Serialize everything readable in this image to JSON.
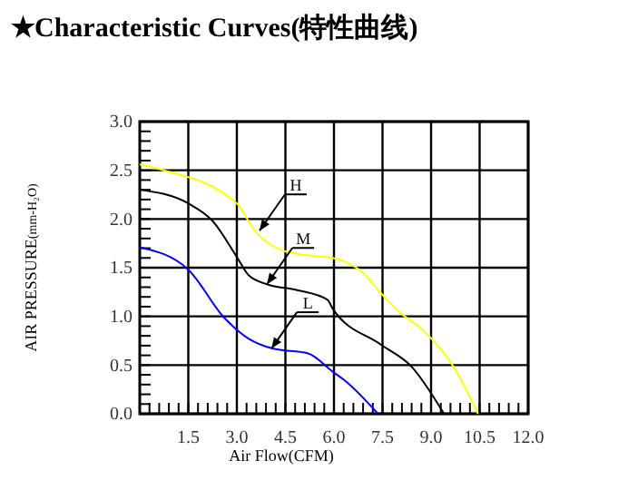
{
  "chart_data": {
    "type": "line",
    "title": "★Characteristic Curves(特性曲线)",
    "xlabel": "Air Flow(CFM)",
    "ylabel": "AIR PRESSURE(mm-H₂O)",
    "series": [
      {
        "color": "#ffff00",
        "x": [
          0,
          0.75,
          3.0,
          3.55,
          4.48,
          5.4,
          5.96,
          6.89,
          7.45,
          8.0,
          8.75,
          9.68,
          10.45
        ],
        "values": [
          2.56,
          2.5,
          2.16,
          1.88,
          1.67,
          1.62,
          1.6,
          1.45,
          1.24,
          1.05,
          0.86,
          0.49,
          0
        ]
      },
      {
        "color": "#000000",
        "x": [
          0,
          1.5,
          2.25,
          3.0,
          3.37,
          3.93,
          4.86,
          5.8,
          5.96,
          7.45,
          8.38,
          9.4
        ],
        "values": [
          2.3,
          2.16,
          1.98,
          1.61,
          1.42,
          1.33,
          1.27,
          1.17,
          1.08,
          0.71,
          0.49,
          0
        ]
      },
      {
        "color": "#0000ff",
        "x": [
          0,
          1.5,
          2.6,
          3.37,
          4.1,
          5.2,
          5.97,
          6.34,
          7.36
        ],
        "values": [
          1.71,
          1.48,
          0.99,
          0.77,
          0.67,
          0.62,
          0.43,
          0.34,
          0
        ]
      }
    ],
    "annotations": [
      {
        "text": "H",
        "x": 3.7,
        "y": 1.88
      },
      {
        "text": "M",
        "x": 3.93,
        "y": 1.33
      },
      {
        "text": "L",
        "x": 4.07,
        "y": 0.67
      }
    ],
    "xlim": [
      0,
      12
    ],
    "xticks": [
      {
        "value": 0.3,
        "label": null
      },
      {
        "value": 0.6,
        "label": null
      },
      {
        "value": 0.9,
        "label": null
      },
      {
        "value": 1.2,
        "label": null
      },
      {
        "value": 1.5,
        "label": "1.5"
      },
      {
        "value": 1.8,
        "label": null
      },
      {
        "value": 2.1,
        "label": null
      },
      {
        "value": 2.4,
        "label": null
      },
      {
        "value": 2.7,
        "label": null
      },
      {
        "value": 3,
        "label": "3.0"
      },
      {
        "value": 3.3,
        "label": null
      },
      {
        "value": 3.6,
        "label": null
      },
      {
        "value": 3.9,
        "label": null
      },
      {
        "value": 4.2,
        "label": null
      },
      {
        "value": 4.5,
        "label": "4.5"
      },
      {
        "value": 4.8,
        "label": null
      },
      {
        "value": 5.1,
        "label": null
      },
      {
        "value": 5.4,
        "label": null
      },
      {
        "value": 5.7,
        "label": null
      },
      {
        "value": 6,
        "label": "6.0"
      },
      {
        "value": 6.3,
        "label": null
      },
      {
        "value": 6.6,
        "label": null
      },
      {
        "value": 6.9,
        "label": null
      },
      {
        "value": 7.2,
        "label": null
      },
      {
        "value": 7.5,
        "label": "7.5"
      },
      {
        "value": 7.8,
        "label": null
      },
      {
        "value": 8.1,
        "label": null
      },
      {
        "value": 8.4,
        "label": null
      },
      {
        "value": 8.7,
        "label": null
      },
      {
        "value": 9,
        "label": "9.0"
      },
      {
        "value": 9.3,
        "label": null
      },
      {
        "value": 9.6,
        "label": null
      },
      {
        "value": 9.9,
        "label": null
      },
      {
        "value": 10.2,
        "label": null
      },
      {
        "value": 10.5,
        "label": "10.5"
      },
      {
        "value": 10.8,
        "label": null
      },
      {
        "value": 11.1,
        "label": null
      },
      {
        "value": 11.4,
        "label": null
      },
      {
        "value": 11.7,
        "label": null
      },
      {
        "value": 12,
        "label": "12.0"
      }
    ],
    "ylim": [
      0,
      3
    ],
    "yticks": [
      {
        "value": 0,
        "label": "0.0"
      },
      {
        "value": 0.1,
        "label": null
      },
      {
        "value": 0.2,
        "label": null
      },
      {
        "value": 0.3,
        "label": null
      },
      {
        "value": 0.4,
        "label": null
      },
      {
        "value": 0.5,
        "label": "0.5"
      },
      {
        "value": 0.6,
        "label": null
      },
      {
        "value": 0.7,
        "label": null
      },
      {
        "value": 0.8,
        "label": null
      },
      {
        "value": 0.9,
        "label": null
      },
      {
        "value": 1,
        "label": "1.0"
      },
      {
        "value": 1.1,
        "label": null
      },
      {
        "value": 1.2,
        "label": null
      },
      {
        "value": 1.3,
        "label": null
      },
      {
        "value": 1.4,
        "label": null
      },
      {
        "value": 1.5,
        "label": "1.5"
      },
      {
        "value": 1.6,
        "label": null
      },
      {
        "value": 1.7,
        "label": null
      },
      {
        "value": 1.8,
        "label": null
      },
      {
        "value": 1.9,
        "label": null
      },
      {
        "value": 2,
        "label": "2.0"
      },
      {
        "value": 2.1,
        "label": null
      },
      {
        "value": 2.2,
        "label": null
      },
      {
        "value": 2.3,
        "label": null
      },
      {
        "value": 2.4,
        "label": null
      },
      {
        "value": 2.5,
        "label": "2.5"
      },
      {
        "value": 2.6,
        "label": null
      },
      {
        "value": 2.7,
        "label": null
      },
      {
        "value": 2.8,
        "label": null
      },
      {
        "value": 2.9,
        "label": null
      },
      {
        "value": 3,
        "label": "3.0"
      }
    ],
    "grid": true,
    "marker": "none",
    "line_style": "solid"
  }
}
